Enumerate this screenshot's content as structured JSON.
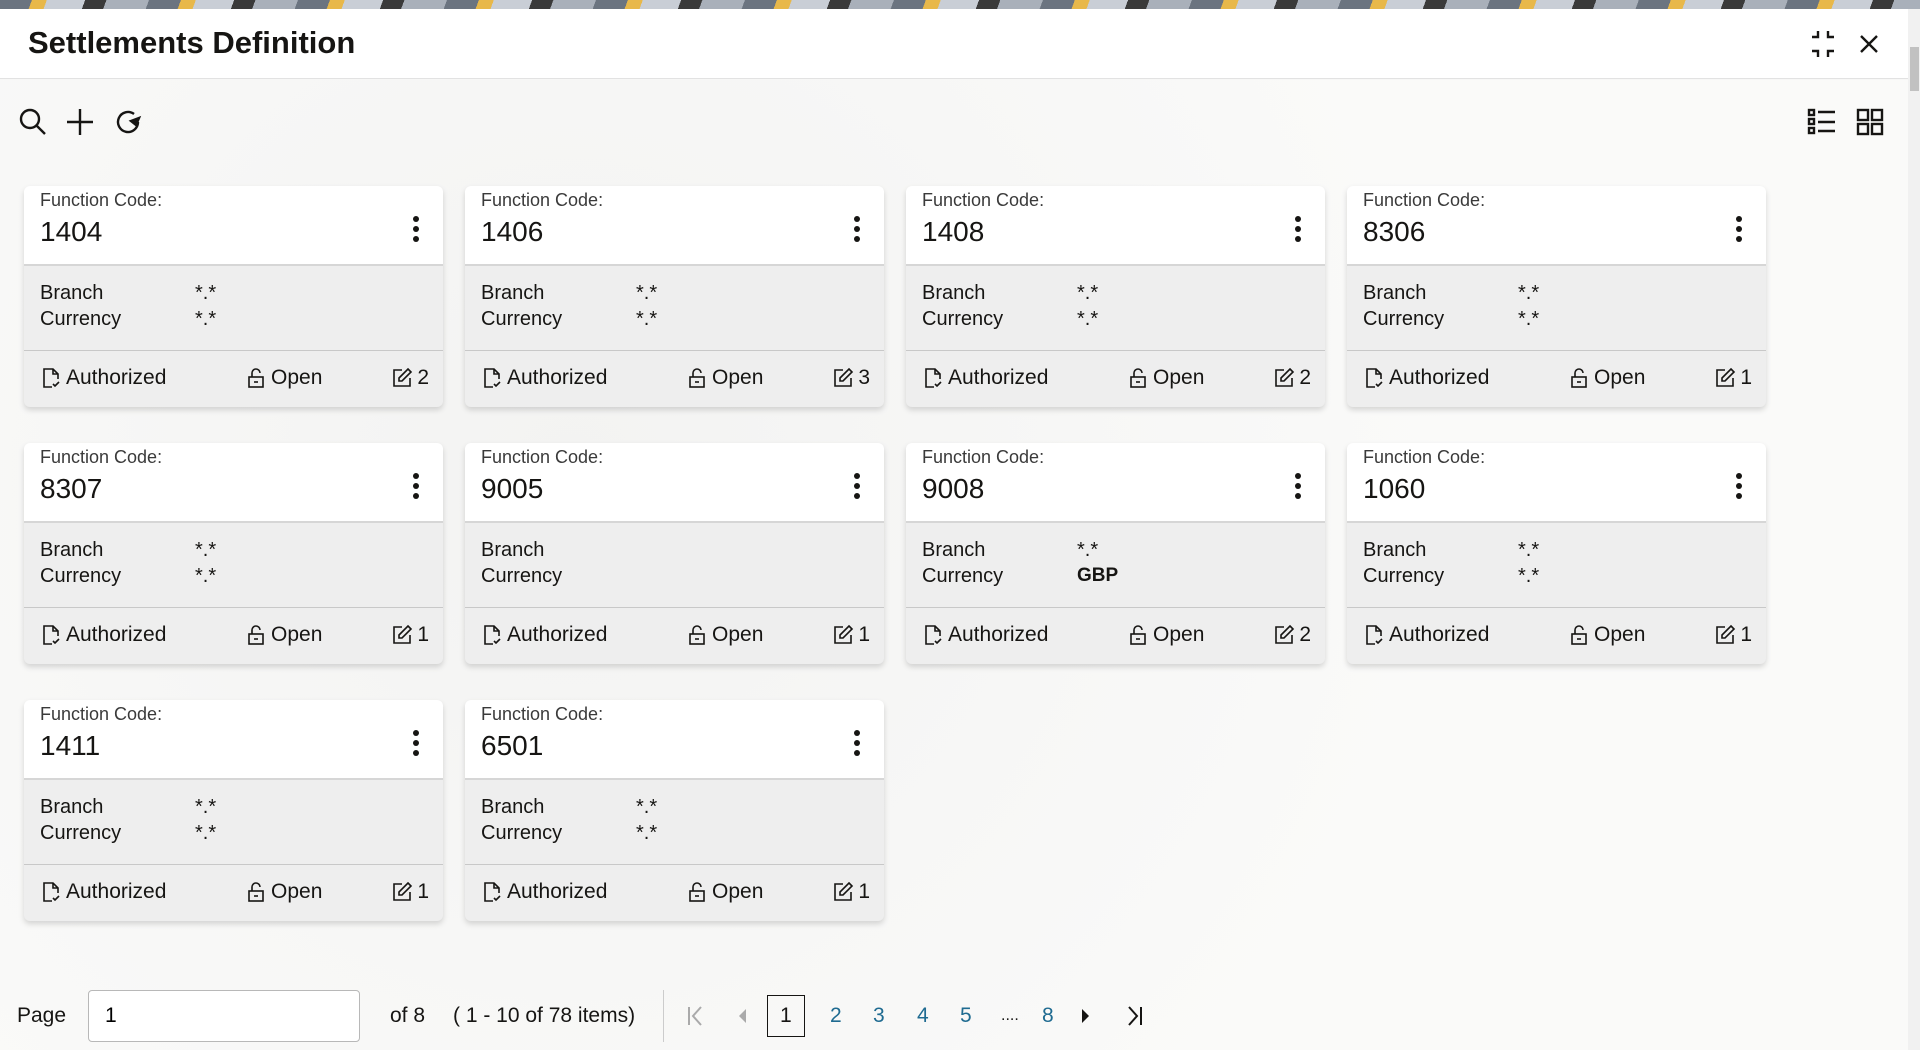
{
  "window": {
    "title": "Settlements Definition",
    "minimize_icon": "collapse-icon",
    "close_icon": "close-icon"
  },
  "toolbar": {
    "icons": [
      "search-icon",
      "add-icon",
      "refresh-icon"
    ],
    "view_icons": [
      "list-view-icon",
      "grid-view-icon"
    ]
  },
  "labels": {
    "function_code": "Function Code:",
    "branch": "Branch",
    "currency": "Currency",
    "authorized": "Authorized",
    "open": "Open"
  },
  "cards": [
    {
      "code": "1404",
      "branch": "*.*",
      "currency": "*.*",
      "status": "Authorized",
      "record": "Open",
      "edits": "2"
    },
    {
      "code": "1406",
      "branch": "*.*",
      "currency": "*.*",
      "status": "Authorized",
      "record": "Open",
      "edits": "3"
    },
    {
      "code": "1408",
      "branch": "*.*",
      "currency": "*.*",
      "status": "Authorized",
      "record": "Open",
      "edits": "2"
    },
    {
      "code": "8306",
      "branch": "*.*",
      "currency": "*.*",
      "status": "Authorized",
      "record": "Open",
      "edits": "1"
    },
    {
      "code": "8307",
      "branch": "*.*",
      "currency": "*.*",
      "status": "Authorized",
      "record": "Open",
      "edits": "1"
    },
    {
      "code": "9005",
      "branch": "",
      "currency": "",
      "status": "Authorized",
      "record": "Open",
      "edits": "1"
    },
    {
      "code": "9008",
      "branch": "*.*",
      "currency": "GBP",
      "status": "Authorized",
      "record": "Open",
      "edits": "2"
    },
    {
      "code": "1060",
      "branch": "*.*",
      "currency": "*.*",
      "status": "Authorized",
      "record": "Open",
      "edits": "1"
    },
    {
      "code": "1411",
      "branch": "*.*",
      "currency": "*.*",
      "status": "Authorized",
      "record": "Open",
      "edits": "1"
    },
    {
      "code": "6501",
      "branch": "*.*",
      "currency": "*.*",
      "status": "Authorized",
      "record": "Open",
      "edits": "1"
    }
  ],
  "pagination": {
    "page_label": "Page",
    "page_value": "1",
    "of_pages": "of 8",
    "items_summary": "( 1 - 10 of 78 items)",
    "pages": [
      "1",
      "2",
      "3",
      "4",
      "5",
      "....",
      "8"
    ],
    "current": "1"
  }
}
